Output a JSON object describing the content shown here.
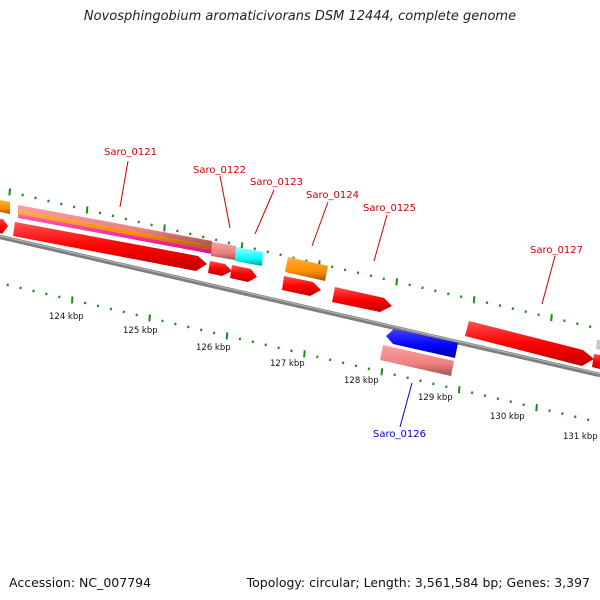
{
  "title": "Novosphingobium aromaticivorans DSM 12444, complete genome",
  "footer": {
    "accession": "Accession: NC_007794",
    "summary": "Topology: circular; Length: 3,561,584 bp; Genes: 3,397"
  },
  "colors": {
    "backbone": "#8a8a8a",
    "tick": "#1a8a1a",
    "cds": "#ff0000",
    "salmon": "#f08080",
    "orange": "#ff8c00",
    "magenta": "#ff1493",
    "cyan": "#00ffff",
    "blue": "#0000ff",
    "label_red": "#cc0000",
    "label_blue": "#0000cc"
  },
  "scale_labels": [
    "124 kbp",
    "125 kbp",
    "126 kbp",
    "127 kbp",
    "128 kbp",
    "129 kbp",
    "130 kbp",
    "131 kbp"
  ],
  "gene_labels": [
    {
      "name": "Saro_0121",
      "color": "label_red"
    },
    {
      "name": "Saro_0122",
      "color": "label_red"
    },
    {
      "name": "Saro_0123",
      "color": "label_red"
    },
    {
      "name": "Saro_0124",
      "color": "label_red"
    },
    {
      "name": "Saro_0125",
      "color": "label_red"
    },
    {
      "name": "Saro_0127",
      "color": "label_red"
    },
    {
      "name": "Saro_0126",
      "color": "label_blue"
    }
  ]
}
